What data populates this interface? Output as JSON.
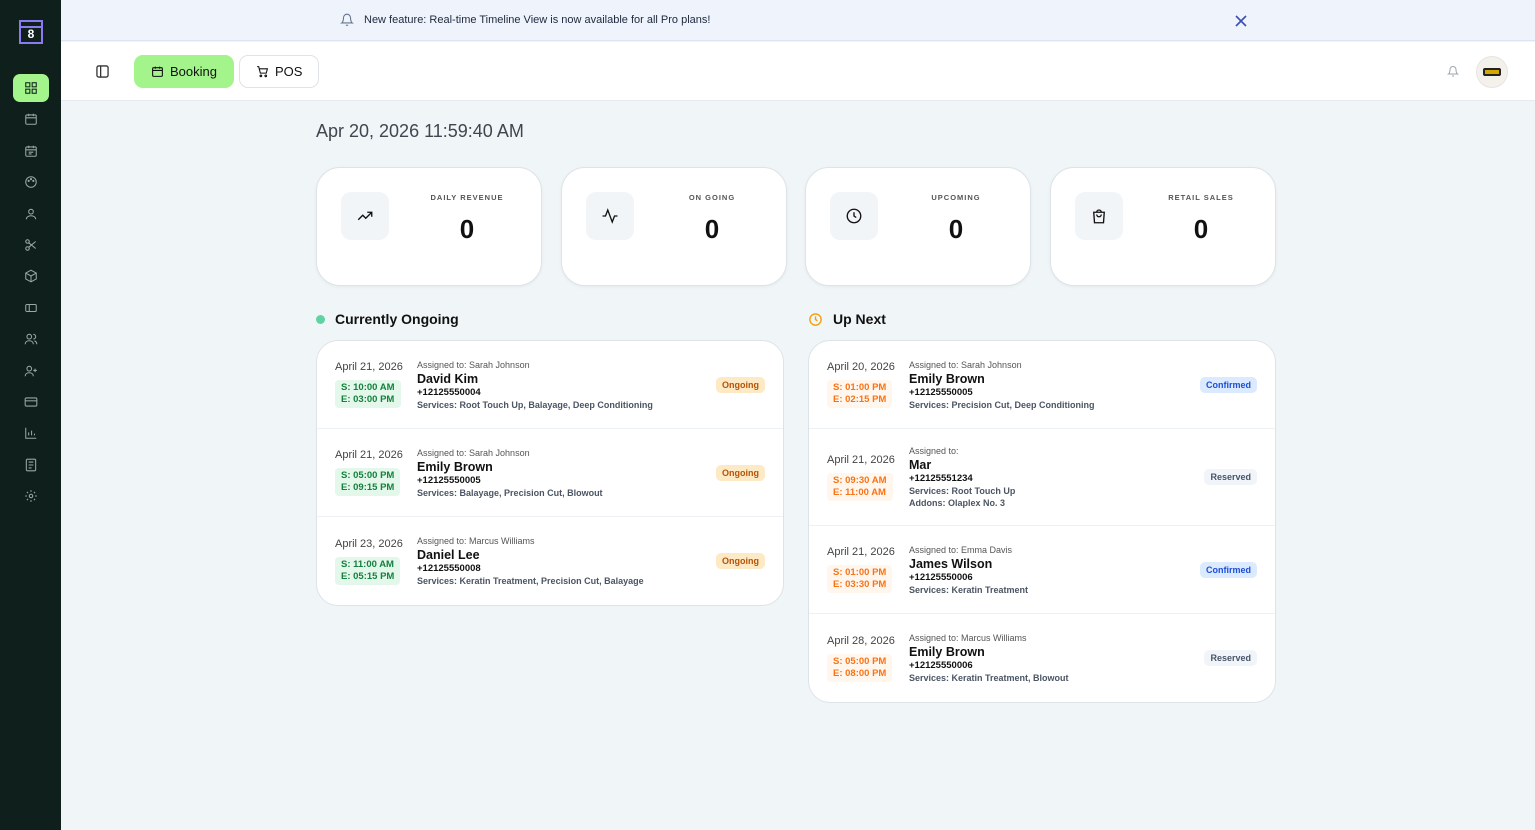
{
  "banner": {
    "text": "New feature: Real-time Timeline View is now available for all Pro plans!"
  },
  "logo": "8",
  "tabs": [
    "Booking",
    "POS"
  ],
  "datetime": "Apr 20, 2026 11:59:40 AM",
  "stats": [
    {
      "label": "DAILY REVENUE",
      "value": "0"
    },
    {
      "label": "ON GOING",
      "value": "0"
    },
    {
      "label": "UPCOMING",
      "value": "0"
    },
    {
      "label": "RETAIL SALES",
      "value": "0"
    }
  ],
  "sections": [
    {
      "title": "Currently Ongoing",
      "dot_color": "#5fd4a3",
      "time_color": "#15803d",
      "time_bg": "#e3f7ea",
      "items": [
        {
          "date": "April 21, 2026",
          "start": "S: 10:00 AM",
          "end": "E: 03:00 PM",
          "assigned": "Assigned to: Sarah Johnson",
          "name": "David Kim",
          "phone": "+12125550004",
          "details": [
            "Services: Root Touch Up, Balayage, Deep Conditioning"
          ],
          "status": "Ongoing",
          "status_color": "#b45309",
          "status_bg": "#fde9c4"
        },
        {
          "date": "April 21, 2026",
          "start": "S: 05:00 PM",
          "end": "E: 09:15 PM",
          "assigned": "Assigned to: Sarah Johnson",
          "name": "Emily Brown",
          "phone": "+12125550005",
          "details": [
            "Services: Balayage, Precision Cut, Blowout"
          ],
          "status": "Ongoing",
          "status_color": "#b45309",
          "status_bg": "#fde9c4"
        },
        {
          "date": "April 23, 2026",
          "start": "S: 11:00 AM",
          "end": "E: 05:15 PM",
          "assigned": "Assigned to: Marcus Williams",
          "name": "Daniel Lee",
          "phone": "+12125550008",
          "details": [
            "Services: Keratin Treatment, Precision Cut, Balayage"
          ],
          "status": "Ongoing",
          "status_color": "#b45309",
          "status_bg": "#fde9c4"
        }
      ]
    },
    {
      "title": "Up Next",
      "dot_color": "#f59e0b",
      "time_color": "#f97316",
      "time_bg": "#fff7ed",
      "items": [
        {
          "date": "April 20, 2026",
          "start": "S: 01:00 PM",
          "end": "E: 02:15 PM",
          "assigned": "Assigned to: Sarah Johnson",
          "name": "Emily Brown",
          "phone": "+12125550005",
          "details": [
            "Services: Precision Cut, Deep Conditioning"
          ],
          "status": "Confirmed",
          "status_color": "#1d4ed8",
          "status_bg": "#dbeafe"
        },
        {
          "date": "April 21, 2026",
          "start": "S: 09:30 AM",
          "end": "E: 11:00 AM",
          "assigned": "Assigned to:",
          "name": "Mar",
          "phone": "+12125551234",
          "details": [
            "Services: Root Touch Up",
            "Addons: Olaplex No. 3"
          ],
          "status": "Reserved",
          "status_color": "#475569",
          "status_bg": "#f1f5f9"
        },
        {
          "date": "April 21, 2026",
          "start": "S: 01:00 PM",
          "end": "E: 03:30 PM",
          "assigned": "Assigned to: Emma Davis",
          "name": "James Wilson",
          "phone": "+12125550006",
          "details": [
            "Services: Keratin Treatment"
          ],
          "status": "Confirmed",
          "status_color": "#1d4ed8",
          "status_bg": "#dbeafe"
        },
        {
          "date": "April 28, 2026",
          "start": "S: 05:00 PM",
          "end": "E: 08:00 PM",
          "assigned": "Assigned to: Marcus Williams",
          "name": "Emily Brown",
          "phone": "+12125550006",
          "details": [
            "Services: Keratin Treatment, Blowout"
          ],
          "status": "Reserved",
          "status_color": "#475569",
          "status_bg": "#f1f5f9"
        }
      ]
    }
  ]
}
